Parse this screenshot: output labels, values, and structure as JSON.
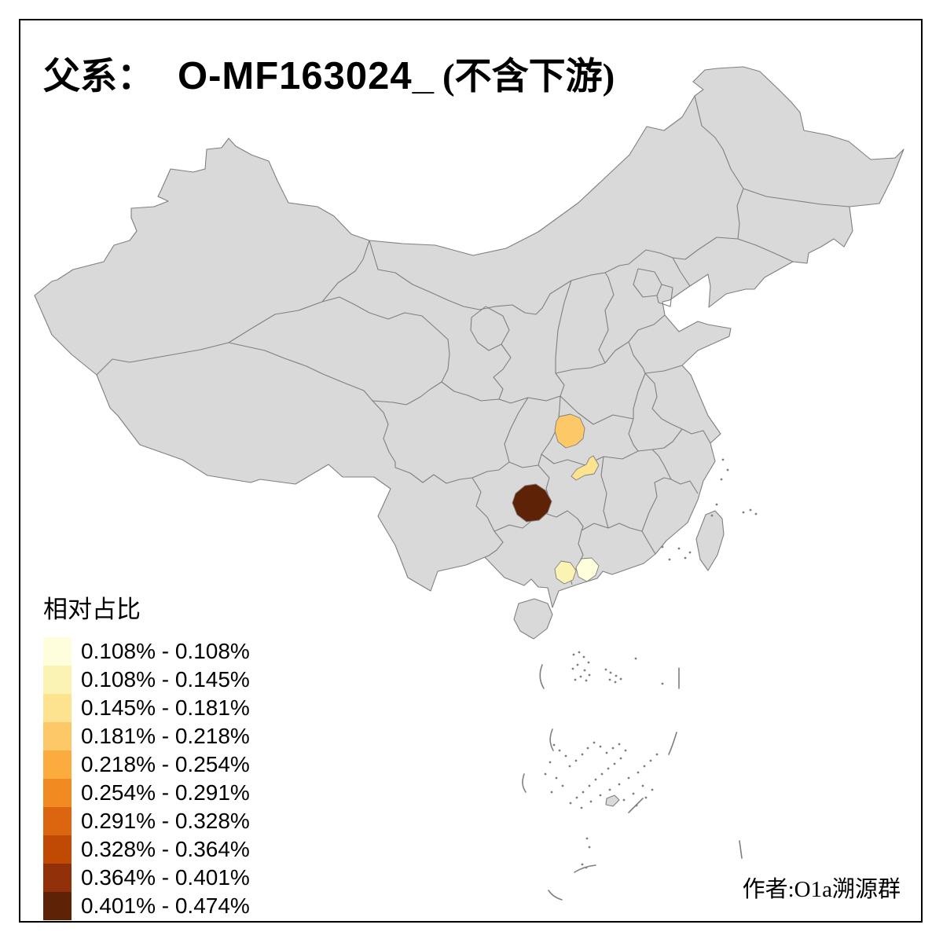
{
  "title": {
    "prefix": "父系：",
    "haplogroup": "O-MF163024_",
    "suffix": "(不含下游)"
  },
  "legend": {
    "title": "相对占比",
    "items": [
      {
        "label": "0.108% - 0.108%",
        "color": "#FFFEDC"
      },
      {
        "label": "0.108% - 0.145%",
        "color": "#FBF3B4"
      },
      {
        "label": "0.145% - 0.181%",
        "color": "#FDE28F"
      },
      {
        "label": "0.181% - 0.218%",
        "color": "#FDC968"
      },
      {
        "label": "0.218% - 0.254%",
        "color": "#FCAC3E"
      },
      {
        "label": "0.254% - 0.291%",
        "color": "#F28A22"
      },
      {
        "label": "0.291% - 0.328%",
        "color": "#DB660F"
      },
      {
        "label": "0.328% - 0.364%",
        "color": "#C04A04"
      },
      {
        "label": "0.364% - 0.401%",
        "color": "#92300A"
      },
      {
        "label": "0.401% - 0.474%",
        "color": "#5E2306"
      }
    ]
  },
  "credit": "作者:O1a溯源群",
  "map": {
    "background": "#FFFFFF",
    "frame_color": "#000000",
    "land_color": "#D9D9D9",
    "border_color": "#7F7F7F",
    "regions": [
      {
        "id": "region-1",
        "class_index": 4,
        "range": "0.181% - 0.218%"
      },
      {
        "id": "region-2",
        "class_index": 3,
        "range": "0.145% - 0.181%"
      },
      {
        "id": "region-3",
        "class_index": 10,
        "range": "0.401% - 0.474%"
      },
      {
        "id": "region-4",
        "class_index": 2,
        "range": "0.108% - 0.145%"
      },
      {
        "id": "region-5",
        "class_index": 1,
        "range": "0.108% - 0.108%"
      }
    ]
  },
  "chart_data": {
    "type": "choropleth",
    "title": "父系： O-MF163024_ (不含下游)",
    "legend_title": "相对占比",
    "legend_position": "bottom-left",
    "classes": [
      "0.108% - 0.108%",
      "0.108% - 0.145%",
      "0.145% - 0.181%",
      "0.181% - 0.218%",
      "0.218% - 0.254%",
      "0.254% - 0.291%",
      "0.291% - 0.328%",
      "0.328% - 0.364%",
      "0.364% - 0.401%",
      "0.401% - 0.474%"
    ],
    "highlighted_regions": [
      {
        "id": "region-1",
        "value_range": "0.181% - 0.218%"
      },
      {
        "id": "region-2",
        "value_range": "0.145% - 0.181%"
      },
      {
        "id": "region-3",
        "value_range": "0.401% - 0.474%"
      },
      {
        "id": "region-4",
        "value_range": "0.108% - 0.145%"
      },
      {
        "id": "region-5",
        "value_range": "0.108% - 0.108%"
      }
    ]
  }
}
